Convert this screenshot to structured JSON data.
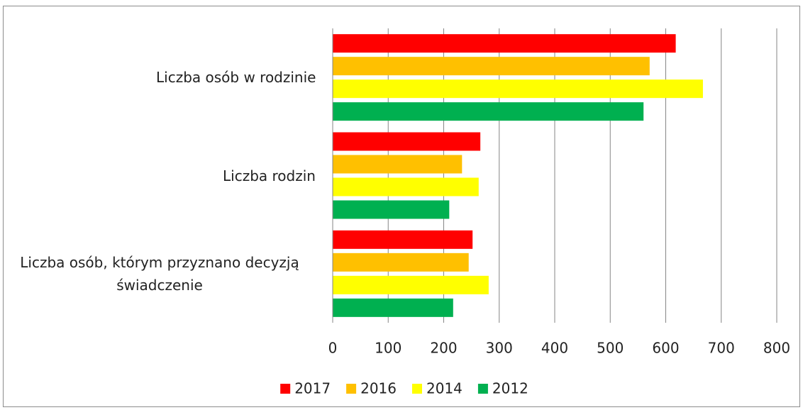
{
  "chart_data": {
    "type": "barh",
    "categories": [
      "Liczba osób w rodzinie",
      "Liczba rodzin",
      "Liczba osób, którym przyznano decyzją świadczenie"
    ],
    "series": [
      {
        "name": "2017",
        "color": "#ff0000",
        "values": [
          618,
          266,
          252
        ]
      },
      {
        "name": "2016",
        "color": "#ffc000",
        "values": [
          571,
          233,
          245
        ]
      },
      {
        "name": "2014",
        "color": "#ffff00",
        "values": [
          667,
          263,
          281
        ]
      },
      {
        "name": "2012",
        "color": "#00b050",
        "values": [
          560,
          210,
          217
        ]
      }
    ],
    "xlim": [
      0,
      800
    ],
    "xticks": [
      0,
      100,
      200,
      300,
      400,
      500,
      600,
      700,
      800
    ],
    "grid": true,
    "legend": "bottom"
  }
}
